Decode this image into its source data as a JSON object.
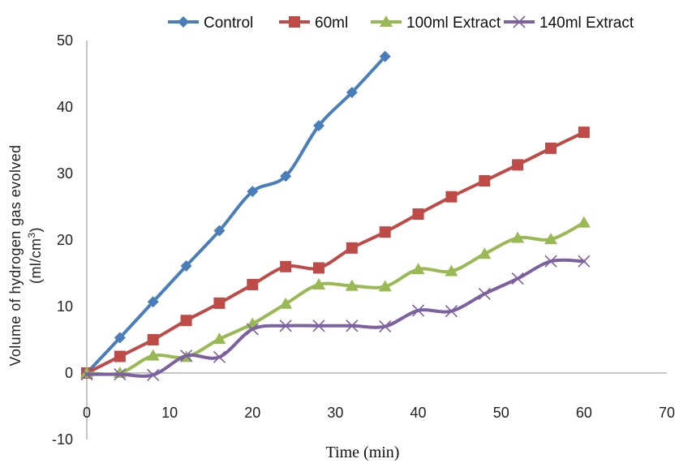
{
  "chart_data": {
    "type": "line",
    "xlabel": "Time (min)",
    "ylabel_line1": "Volume of hydrogen gas evolved",
    "ylabel_line2_prefix": "(ml/cm",
    "ylabel_line2_sup": "3",
    "ylabel_line2_suffix": ")",
    "xlim": [
      0,
      70
    ],
    "ylim": [
      -10,
      50
    ],
    "xticks": [
      0,
      10,
      20,
      30,
      40,
      50,
      60,
      70
    ],
    "yticks": [
      -10,
      0,
      10,
      20,
      30,
      40,
      50
    ],
    "legend_position": "top",
    "series": [
      {
        "name": "Control",
        "color": "#4a7ebb",
        "marker": "diamond",
        "x": [
          0,
          4,
          8,
          12,
          16,
          20,
          24,
          28,
          32,
          36
        ],
        "y": [
          0,
          5.3,
          10.7,
          16.1,
          21.4,
          27.3,
          29.6,
          37.2,
          42.2,
          47.6
        ]
      },
      {
        "name": "60ml",
        "color": "#be4b48",
        "marker": "square",
        "x": [
          0,
          4,
          8,
          12,
          16,
          20,
          24,
          28,
          32,
          36,
          40,
          44,
          48,
          52,
          56,
          60
        ],
        "y": [
          0,
          2.5,
          5.0,
          7.9,
          10.5,
          13.3,
          16.0,
          15.8,
          18.8,
          21.2,
          23.9,
          26.5,
          28.9,
          31.3,
          33.8,
          36.2
        ]
      },
      {
        "name": "100ml Extract",
        "color": "#98b954",
        "marker": "triangle",
        "x": [
          0,
          4,
          8,
          12,
          16,
          20,
          24,
          28,
          32,
          36,
          40,
          44,
          48,
          52,
          56,
          60
        ],
        "y": [
          0,
          0,
          2.6,
          2.4,
          5.1,
          7.4,
          10.4,
          13.3,
          13.1,
          13.0,
          15.6,
          15.3,
          17.9,
          20.3,
          20.1,
          22.6
        ]
      },
      {
        "name": "140ml Extract",
        "color": "#7d60a0",
        "marker": "x",
        "x": [
          0,
          4,
          8,
          12,
          16,
          20,
          24,
          28,
          32,
          36,
          40,
          44,
          48,
          52,
          56,
          60
        ],
        "y": [
          -0.2,
          -0.2,
          -0.3,
          2.6,
          2.4,
          6.6,
          7.1,
          7.1,
          7.1,
          7.0,
          9.4,
          9.3,
          11.9,
          14.2,
          16.8,
          16.8
        ]
      }
    ]
  }
}
